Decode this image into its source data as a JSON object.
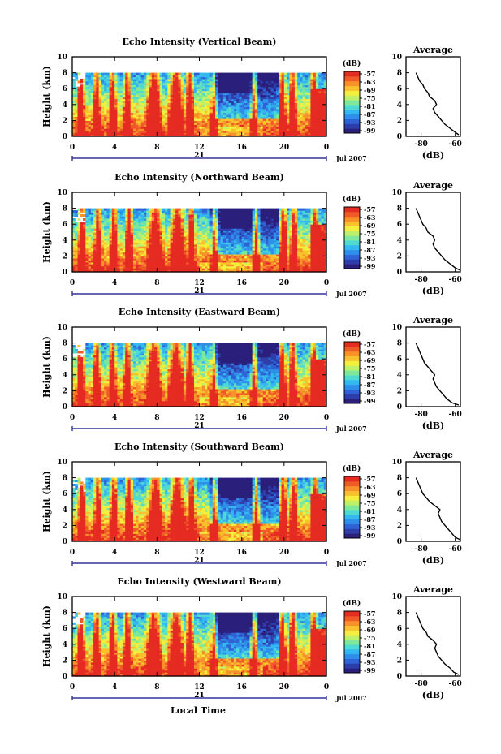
{
  "x_axis_label": "Local Time",
  "chart_data": [
    {
      "type": "heatmap",
      "title": "Echo Intensity (Vertical Beam)",
      "ylabel": "Height (km)",
      "ylim": [
        0,
        10
      ],
      "yticks": [
        "0",
        "2",
        "4",
        "6",
        "8",
        "10"
      ],
      "xticks": [
        "0",
        "4",
        "8",
        "12",
        "16",
        "20",
        "0"
      ],
      "date_labels": {
        "day": "21",
        "month_year": "Jul 2007"
      },
      "colorbar": {
        "unit": "(dB)",
        "ticks": [
          "-57",
          "-63",
          "-69",
          "-75",
          "-81",
          "-87",
          "-93",
          "-99"
        ]
      },
      "profile": {
        "title": "Average",
        "xlabel": "(dB)",
        "xticks": [
          "-80",
          "-60"
        ],
        "yticks": [
          "0",
          "2",
          "4",
          "6",
          "8",
          "10"
        ],
        "height": [
          0.2,
          0.5,
          1,
          1.5,
          2,
          2.5,
          3,
          3.5,
          4,
          4.5,
          5,
          5.5,
          6,
          6.5,
          7,
          7.5,
          8
        ],
        "value": [
          -58,
          -60,
          -63,
          -66,
          -68,
          -70,
          -72,
          -73,
          -71,
          -72,
          -75,
          -76,
          -78,
          -79,
          -81,
          -82,
          -83
        ]
      }
    },
    {
      "type": "heatmap",
      "title": "Echo Intensity (Northward Beam)",
      "ylabel": "Height (km)",
      "ylim": [
        0,
        10
      ],
      "yticks": [
        "0",
        "2",
        "4",
        "6",
        "8",
        "10"
      ],
      "xticks": [
        "0",
        "4",
        "8",
        "12",
        "16",
        "20",
        "0"
      ],
      "date_labels": {
        "day": "21",
        "month_year": "Jul 2007"
      },
      "colorbar": {
        "unit": "(dB)",
        "ticks": [
          "-57",
          "-63",
          "-69",
          "-75",
          "-81",
          "-87",
          "-93",
          "-99"
        ]
      },
      "profile": {
        "title": "Average",
        "xlabel": "(dB)",
        "xticks": [
          "-80",
          "-60"
        ],
        "yticks": [
          "0",
          "2",
          "4",
          "6",
          "8",
          "10"
        ],
        "height": [
          0.2,
          0.5,
          1,
          1.5,
          2,
          2.5,
          3,
          3.5,
          4,
          4.5,
          5,
          5.5,
          6,
          6.5,
          7,
          7.5,
          8
        ],
        "value": [
          -57,
          -60,
          -63,
          -66,
          -68,
          -70,
          -72,
          -73,
          -72,
          -73,
          -76,
          -77,
          -79,
          -80,
          -81,
          -82,
          -83
        ]
      }
    },
    {
      "type": "heatmap",
      "title": "Echo Intensity (Eastward Beam)",
      "ylabel": "Height (km)",
      "ylim": [
        0,
        10
      ],
      "yticks": [
        "0",
        "2",
        "4",
        "6",
        "8",
        "10"
      ],
      "xticks": [
        "0",
        "4",
        "8",
        "12",
        "16",
        "20",
        "0"
      ],
      "date_labels": {
        "day": "21",
        "month_year": "Jul 2007"
      },
      "colorbar": {
        "unit": "(dB)",
        "ticks": [
          "-57",
          "-63",
          "-69",
          "-75",
          "-81",
          "-87",
          "-93",
          "-99"
        ]
      },
      "profile": {
        "title": "Average",
        "xlabel": "(dB)",
        "xticks": [
          "-80",
          "-60"
        ],
        "yticks": [
          "0",
          "2",
          "4",
          "6",
          "8",
          "10"
        ],
        "height": [
          0.2,
          0.5,
          1,
          1.5,
          2,
          2.5,
          3,
          3.5,
          4,
          4.5,
          5,
          5.5,
          6,
          6.5,
          7,
          7.5,
          8
        ],
        "value": [
          -58,
          -62,
          -65,
          -67,
          -69,
          -71,
          -72,
          -73,
          -72,
          -74,
          -76,
          -78,
          -79,
          -80,
          -81,
          -82,
          -83
        ]
      }
    },
    {
      "type": "heatmap",
      "title": "Echo Intensity (Southward Beam)",
      "ylabel": "Height (km)",
      "ylim": [
        0,
        10
      ],
      "yticks": [
        "0",
        "2",
        "4",
        "6",
        "8",
        "10"
      ],
      "xticks": [
        "0",
        "4",
        "8",
        "12",
        "16",
        "20",
        "0"
      ],
      "date_labels": {
        "day": "21",
        "month_year": "Jul 2007"
      },
      "colorbar": {
        "unit": "(dB)",
        "ticks": [
          "-57",
          "-63",
          "-69",
          "-75",
          "-81",
          "-87",
          "-93",
          "-99"
        ]
      },
      "profile": {
        "title": "Average",
        "xlabel": "(dB)",
        "xticks": [
          "-80",
          "-60"
        ],
        "yticks": [
          "0",
          "2",
          "4",
          "6",
          "8",
          "10"
        ],
        "height": [
          0.2,
          0.5,
          1,
          1.5,
          2,
          2.5,
          3,
          3.5,
          4,
          4.5,
          5,
          5.5,
          6,
          6.5,
          7,
          7.5,
          8
        ],
        "value": [
          -57,
          -60,
          -62,
          -64,
          -66,
          -68,
          -69,
          -70,
          -69,
          -72,
          -75,
          -77,
          -79,
          -80,
          -81,
          -82,
          -83
        ]
      }
    },
    {
      "type": "heatmap",
      "title": "Echo Intensity (Westward Beam)",
      "ylabel": "Height (km)",
      "ylim": [
        0,
        10
      ],
      "yticks": [
        "0",
        "2",
        "4",
        "6",
        "8",
        "10"
      ],
      "xticks": [
        "0",
        "4",
        "8",
        "12",
        "16",
        "20",
        "0"
      ],
      "date_labels": {
        "day": "21",
        "month_year": "Jul 2007"
      },
      "colorbar": {
        "unit": "(dB)",
        "ticks": [
          "-57",
          "-63",
          "-69",
          "-75",
          "-81",
          "-87",
          "-93",
          "-99"
        ]
      },
      "profile": {
        "title": "Average",
        "xlabel": "(dB)",
        "xticks": [
          "-80",
          "-60"
        ],
        "yticks": [
          "0",
          "2",
          "4",
          "6",
          "8",
          "10"
        ],
        "height": [
          0.2,
          0.5,
          1,
          1.5,
          2,
          2.5,
          3,
          3.5,
          4,
          4.5,
          5,
          5.5,
          6,
          6.5,
          7,
          7.5,
          8
        ],
        "value": [
          -58,
          -61,
          -63,
          -66,
          -68,
          -70,
          -71,
          -72,
          -71,
          -73,
          -76,
          -77,
          -79,
          -80,
          -81,
          -82,
          -83
        ]
      }
    }
  ],
  "colormap": [
    "#2a1f7a",
    "#2e3ea8",
    "#2f62d4",
    "#2f8fe8",
    "#35b8f0",
    "#4fd9d2",
    "#7fe89a",
    "#bff06a",
    "#f4ee3c",
    "#f9c12c",
    "#f7922a",
    "#f05a28",
    "#e52b22"
  ]
}
